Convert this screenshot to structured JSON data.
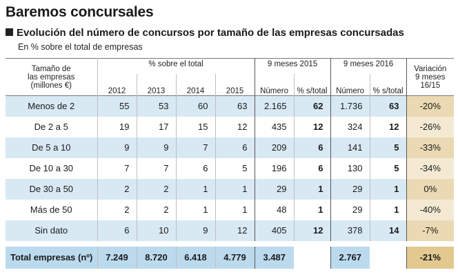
{
  "title": "Baremos concursales",
  "subtitle": "Evolución del número de concursos por tamaño de las empresas concursadas",
  "unit_note": "En % sobre el total de empresas",
  "headers": {
    "size_label_1": "Tamaño de",
    "size_label_2": "las empresas",
    "size_label_3": "(millones €)",
    "pct_group": "% sobre el total",
    "years": [
      "2012",
      "2013",
      "2014",
      "2015"
    ],
    "m2015_group": "9 meses 2015",
    "m2016_group": "9 meses 2016",
    "numero": "Número",
    "pct_total": "% s/total",
    "var_1": "Variación",
    "var_2": "9 meses",
    "var_3": "16/15"
  },
  "rows": [
    {
      "label": "Menos de 2",
      "y2012": "55",
      "y2013": "53",
      "y2014": "60",
      "y2015": "63",
      "n2015": "2.165",
      "p2015": "62",
      "n2016": "1.736",
      "p2016": "63",
      "var": "-20%"
    },
    {
      "label": "De 2 a 5",
      "y2012": "19",
      "y2013": "17",
      "y2014": "15",
      "y2015": "12",
      "n2015": "435",
      "p2015": "12",
      "n2016": "324",
      "p2016": "12",
      "var": "-26%"
    },
    {
      "label": "De 5 a 10",
      "y2012": "9",
      "y2013": "9",
      "y2014": "7",
      "y2015": "6",
      "n2015": "209",
      "p2015": "6",
      "n2016": "141",
      "p2016": "5",
      "var": "-33%"
    },
    {
      "label": "De 10 a 30",
      "y2012": "7",
      "y2013": "7",
      "y2014": "6",
      "y2015": "5",
      "n2015": "196",
      "p2015": "6",
      "n2016": "130",
      "p2016": "5",
      "var": "-34%"
    },
    {
      "label": "De 30 a 50",
      "y2012": "2",
      "y2013": "2",
      "y2014": "1",
      "y2015": "1",
      "n2015": "29",
      "p2015": "1",
      "n2016": "29",
      "p2016": "1",
      "var": "0%"
    },
    {
      "label": "Más de 50",
      "y2012": "2",
      "y2013": "2",
      "y2014": "1",
      "y2015": "1",
      "n2015": "48",
      "p2015": "1",
      "n2016": "29",
      "p2016": "1",
      "var": "-40%"
    },
    {
      "label": "Sin dato",
      "y2012": "6",
      "y2013": "10",
      "y2014": "9",
      "y2015": "12",
      "n2015": "405",
      "p2015": "12",
      "n2016": "378",
      "p2016": "14",
      "var": "-7%"
    }
  ],
  "total": {
    "label": "Total empresas (nº)",
    "y2012": "7.249",
    "y2013": "8.720",
    "y2014": "6.418",
    "y2015": "4.779",
    "n2015": "3.487",
    "n2016": "2.767",
    "var": "-21%"
  },
  "colors": {
    "row_blue": "#d8e9f4",
    "total_blue": "#bcdaee",
    "var_dark": "#ead9b3",
    "var_light": "#f4ead4",
    "var_total": "#e3c98f"
  }
}
